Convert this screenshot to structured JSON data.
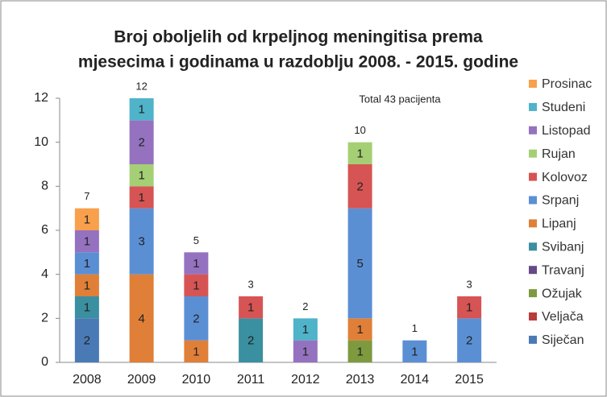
{
  "chart_data": {
    "type": "stacked_bar",
    "title": [
      "Broj oboljelih od krpeljnog meningitisa prema",
      "mjesecima i godinama u razdoblju 2008. - 2015. godine"
    ],
    "annotation": "Total 43 pacijenta",
    "categories": [
      "2008",
      "2009",
      "2010",
      "2011",
      "2012",
      "2013",
      "2014",
      "2015"
    ],
    "totals": [
      7,
      12,
      5,
      3,
      2,
      10,
      1,
      3
    ],
    "series": [
      {
        "name": "Siječan",
        "color": "#4a7ab5",
        "values": [
          2,
          null,
          null,
          null,
          null,
          null,
          null,
          null
        ]
      },
      {
        "name": "Veljača",
        "color": "#b83c3a",
        "values": [
          null,
          null,
          null,
          null,
          null,
          null,
          null,
          null
        ]
      },
      {
        "name": "Ožujak",
        "color": "#7e9a3f",
        "values": [
          null,
          null,
          null,
          null,
          null,
          1,
          null,
          null
        ]
      },
      {
        "name": "Travanj",
        "color": "#654a86",
        "values": [
          null,
          null,
          null,
          null,
          null,
          null,
          null,
          null
        ]
      },
      {
        "name": "Svibanj",
        "color": "#3a8fa0",
        "values": [
          1,
          null,
          null,
          2,
          null,
          null,
          null,
          null
        ]
      },
      {
        "name": "Lipanj",
        "color": "#e07f38",
        "values": [
          1,
          4,
          1,
          null,
          null,
          1,
          null,
          null
        ]
      },
      {
        "name": "Srpanj",
        "color": "#5b8fd4",
        "values": [
          1,
          3,
          2,
          null,
          null,
          5,
          1,
          2
        ]
      },
      {
        "name": "Kolovoz",
        "color": "#d65454",
        "values": [
          null,
          1,
          1,
          1,
          null,
          2,
          null,
          1
        ]
      },
      {
        "name": "Rujan",
        "color": "#a5cf74",
        "values": [
          null,
          1,
          null,
          null,
          null,
          1,
          null,
          null
        ]
      },
      {
        "name": "Listopad",
        "color": "#9572bf",
        "values": [
          1,
          2,
          1,
          null,
          1,
          null,
          null,
          null
        ]
      },
      {
        "name": "Studeni",
        "color": "#4fb3c9",
        "values": [
          null,
          1,
          null,
          null,
          1,
          null,
          null,
          null
        ]
      },
      {
        "name": "Prosinac",
        "color": "#f8a04c",
        "values": [
          1,
          null,
          null,
          null,
          null,
          null,
          null,
          null
        ]
      }
    ],
    "ylim": [
      0,
      12
    ],
    "yticks": [
      0,
      2,
      4,
      6,
      8,
      10,
      12
    ],
    "grid": false,
    "legend": "right"
  }
}
